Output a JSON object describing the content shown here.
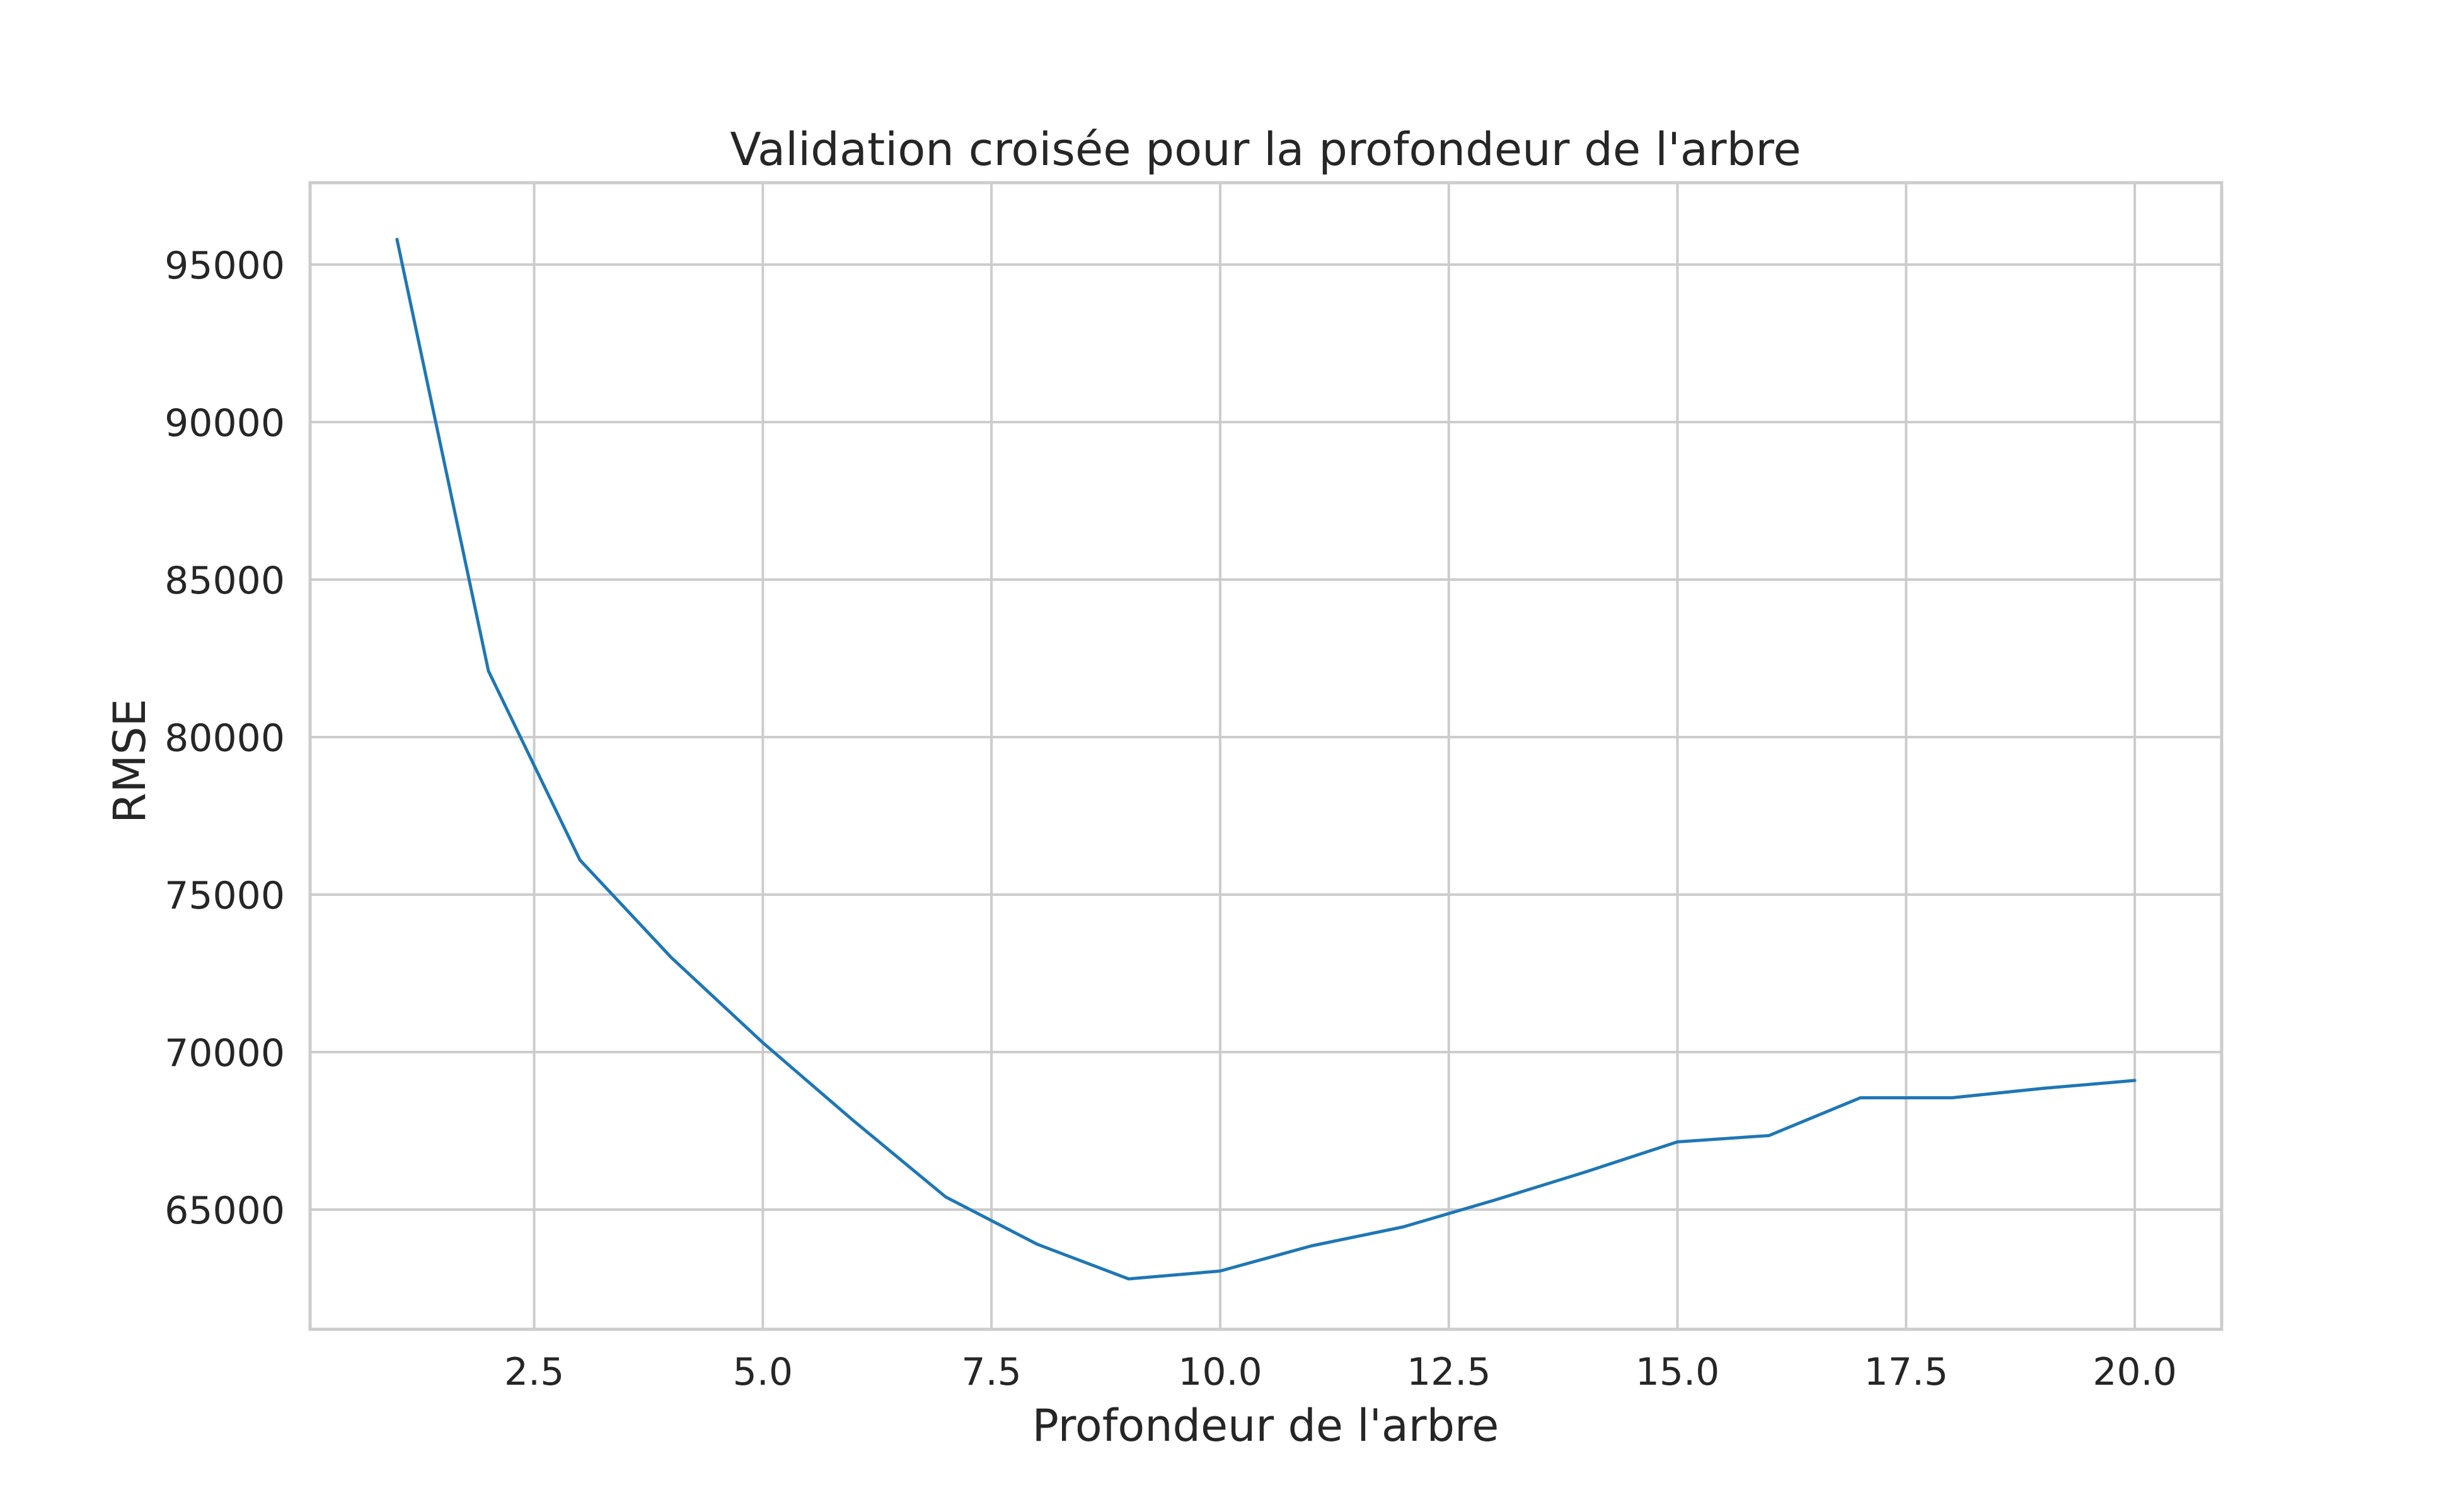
{
  "chart_data": {
    "type": "line",
    "title": "Validation croisée pour la profondeur de l'arbre",
    "xlabel": "Profondeur de l'arbre",
    "ylabel": "RMSE",
    "xlim": [
      0.05,
      20.95
    ],
    "ylim": [
      61200,
      97600
    ],
    "xticks": [
      2.5,
      5.0,
      7.5,
      10.0,
      12.5,
      15.0,
      17.5,
      20.0
    ],
    "xtick_labels": [
      "2.5",
      "5.0",
      "7.5",
      "10.0",
      "12.5",
      "15.0",
      "17.5",
      "20.0"
    ],
    "yticks": [
      65000,
      70000,
      75000,
      80000,
      85000,
      90000,
      95000
    ],
    "ytick_labels": [
      "65000",
      "70000",
      "75000",
      "80000",
      "85000",
      "90000",
      "95000"
    ],
    "grid": true,
    "series": [
      {
        "color": "#1f77b4",
        "x": [
          1,
          2,
          3,
          4,
          5,
          6,
          7,
          8,
          9,
          10,
          11,
          12,
          13,
          14,
          15,
          16,
          17,
          18,
          19,
          20
        ],
        "y": [
          95800,
          82100,
          76100,
          73000,
          70300,
          67800,
          65400,
          63900,
          62800,
          63050,
          63850,
          64450,
          65300,
          66200,
          67150,
          67350,
          68550,
          68550,
          68850,
          69100
        ]
      }
    ]
  }
}
